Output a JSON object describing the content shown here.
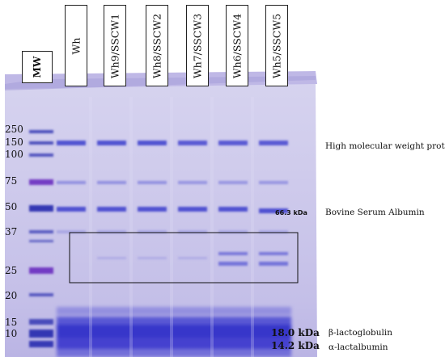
{
  "image": {
    "figure_type": "SDS-PAGE gel",
    "mw_label": "MW",
    "lanes": [
      "Wh",
      "Wh9/SSCW1",
      "Wh8/SSCW2",
      "Wh7/SSCW3",
      "Wh6/SSCW4",
      "Wh5/SSCW5"
    ],
    "markers": [
      "250",
      "150",
      "100",
      "75",
      "50",
      "37",
      "25",
      "20",
      "15",
      "10"
    ],
    "annotations": {
      "high_mw": "High molecular weight proteins",
      "bsa": "Bovine Serum Albumin",
      "beta_lg": "β-lactoglobulin",
      "alpha_la": "α-lactalbumin"
    },
    "kda_labels": {
      "bsa_kda": "66.3 kDa",
      "beta_lg_kda": "18.0 kDa",
      "alpha_la_kda": "14.2 kDa"
    },
    "colors": {
      "gel": "#c9c5ea",
      "band": "#3a3ac8",
      "marker_band": "#2a2fb0"
    }
  }
}
